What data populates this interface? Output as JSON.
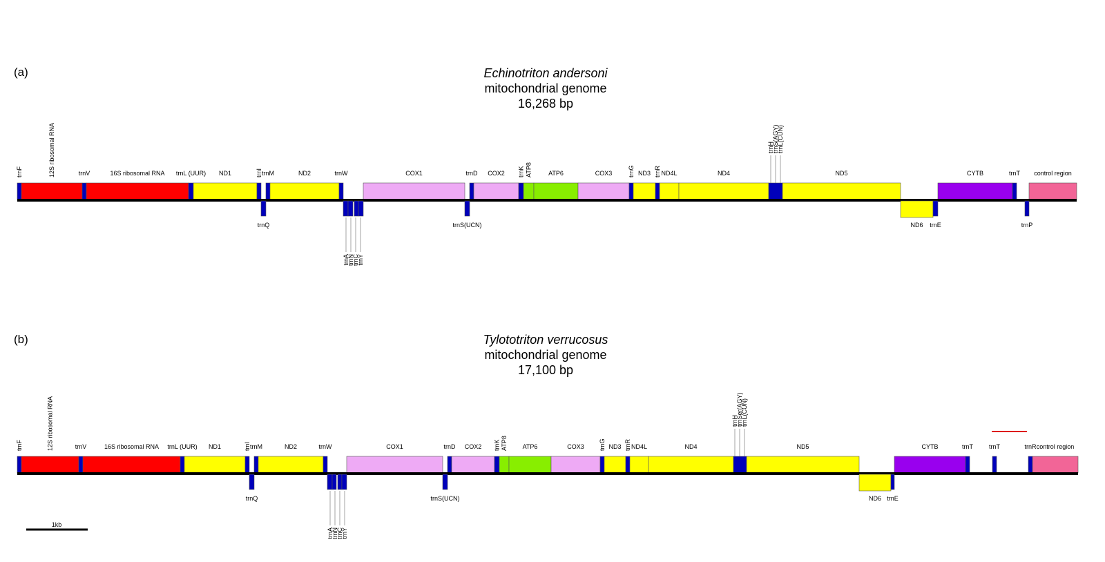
{
  "colors": {
    "rRNA": "#ff0000",
    "gene": "#ffff00",
    "tRNA": "#0000bb",
    "cox": "#eeaaf5",
    "atp": "#88ee00",
    "cytb": "#9900ee",
    "control": "#f26597",
    "backbone": "#000000",
    "red_mark": "#dd0000"
  },
  "panels": [
    {
      "label": "(a)",
      "species": "Echinotriton andersoni",
      "subtitle": "mitochondrial genome",
      "size": "16,268 bp",
      "upper": [
        {
          "name": "trnF",
          "type": "tRNA",
          "start": 0,
          "end": 6,
          "label": "trnF",
          "vertical": true
        },
        {
          "name": "12S",
          "type": "rRNA",
          "start": 6,
          "end": 94,
          "label": "12S ribosomal RNA",
          "vertical": true
        },
        {
          "name": "trnV",
          "type": "tRNA",
          "start": 94,
          "end": 100,
          "label": "trnV",
          "vertical": false
        },
        {
          "name": "16S",
          "type": "rRNA",
          "start": 100,
          "end": 248,
          "label": "16S ribosomal RNA",
          "vertical": false
        },
        {
          "name": "trnL",
          "type": "tRNA",
          "start": 248,
          "end": 255,
          "label": "trnL (UUR)",
          "vertical": false
        },
        {
          "name": "ND1",
          "type": "gene",
          "start": 255,
          "end": 347,
          "label": "ND1",
          "vertical": false
        },
        {
          "name": "trnI",
          "type": "tRNA",
          "start": 347,
          "end": 353,
          "label": "trnI",
          "vertical": true
        },
        {
          "name": "trnM",
          "type": "tRNA",
          "start": 360,
          "end": 366,
          "label": "trnM",
          "vertical": false
        },
        {
          "name": "ND2",
          "type": "gene",
          "start": 366,
          "end": 466,
          "label": "ND2",
          "vertical": false
        },
        {
          "name": "trnW",
          "type": "tRNA",
          "start": 466,
          "end": 472,
          "label": "trnW",
          "vertical": false
        },
        {
          "name": "COX1",
          "type": "cox",
          "start": 501,
          "end": 648,
          "label": "COX1",
          "vertical": false
        },
        {
          "name": "trnD",
          "type": "tRNA",
          "start": 655,
          "end": 661,
          "label": "trnD",
          "vertical": false
        },
        {
          "name": "COX2",
          "type": "cox",
          "start": 661,
          "end": 726,
          "label": "COX2",
          "vertical": false
        },
        {
          "name": "trnK",
          "type": "tRNA",
          "start": 726,
          "end": 733,
          "label": "trnK",
          "vertical": true
        },
        {
          "name": "ATP8",
          "type": "atp",
          "start": 733,
          "end": 748,
          "label": "ATP8",
          "vertical": true
        },
        {
          "name": "ATP6",
          "type": "atp",
          "start": 748,
          "end": 812,
          "label": "ATP6",
          "vertical": false
        },
        {
          "name": "COX3",
          "type": "cox",
          "start": 812,
          "end": 886,
          "label": "COX3",
          "vertical": false
        },
        {
          "name": "trnG",
          "type": "tRNA",
          "start": 886,
          "end": 892,
          "label": "trnG",
          "vertical": true
        },
        {
          "name": "ND3",
          "type": "gene",
          "start": 892,
          "end": 924,
          "label": "ND3",
          "vertical": false
        },
        {
          "name": "trnR",
          "type": "tRNA",
          "start": 924,
          "end": 930,
          "label": "trnR",
          "vertical": true
        },
        {
          "name": "ND4L",
          "type": "gene",
          "start": 930,
          "end": 958,
          "label": "ND4L",
          "vertical": false
        },
        {
          "name": "ND4",
          "type": "gene",
          "start": 958,
          "end": 1088,
          "label": "ND4",
          "vertical": false
        },
        {
          "name": "trnHSL",
          "type": "tRNA",
          "start": 1088,
          "end": 1108,
          "label": "",
          "vertical": false
        },
        {
          "name": "ND5",
          "type": "gene",
          "start": 1108,
          "end": 1279,
          "label": "ND5",
          "vertical": false
        },
        {
          "name": "CYTB",
          "type": "cytb",
          "start": 1333,
          "end": 1441,
          "label": "CYTB",
          "vertical": false
        },
        {
          "name": "trnT",
          "type": "tRNA",
          "start": 1441,
          "end": 1447,
          "label": "trnT",
          "vertical": false
        },
        {
          "name": "control",
          "type": "control",
          "start": 1465,
          "end": 1534,
          "label": "control region",
          "vertical": false
        }
      ],
      "top_cluster": {
        "labels": [
          "trnH",
          "trnS(AGY)",
          "trnL(CUN)"
        ],
        "at": 1098
      },
      "lower": [
        {
          "name": "trnQ",
          "type": "tRNA",
          "start": 353,
          "end": 360,
          "label": "trnQ"
        },
        {
          "name": "trnA",
          "type": "tRNA",
          "start": 472,
          "end": 479,
          "label": ""
        },
        {
          "name": "trnN",
          "type": "tRNA",
          "start": 479,
          "end": 486,
          "label": ""
        },
        {
          "name": "trnC",
          "type": "tRNA",
          "start": 488,
          "end": 494,
          "label": ""
        },
        {
          "name": "trnY",
          "type": "tRNA",
          "start": 494,
          "end": 501,
          "label": ""
        },
        {
          "name": "trnS",
          "type": "tRNA",
          "start": 648,
          "end": 655,
          "label": "trnS(UCN)"
        },
        {
          "name": "ND6",
          "type": "gene",
          "start": 1279,
          "end": 1326,
          "label": "ND6"
        },
        {
          "name": "trnE",
          "type": "tRNA",
          "start": 1326,
          "end": 1333,
          "label": "trnE"
        },
        {
          "name": "trnP",
          "type": "tRNA",
          "start": 1459,
          "end": 1465,
          "label": "trnP"
        }
      ],
      "bottom_cluster": {
        "labels": [
          "trnA",
          "trnN",
          "trnC",
          "trnY"
        ],
        "at": 486
      },
      "length": 1534
    },
    {
      "label": "(b)",
      "species": "Tylototriton verrucosus",
      "subtitle": "mitochondrial genome",
      "size": "17,100 bp",
      "upper": [
        {
          "name": "trnF",
          "type": "tRNA",
          "start": 0,
          "end": 6,
          "label": "trnF",
          "vertical": true
        },
        {
          "name": "12S",
          "type": "rRNA",
          "start": 6,
          "end": 89,
          "label": "12S ribosomal RNA",
          "vertical": true
        },
        {
          "name": "trnV",
          "type": "tRNA",
          "start": 89,
          "end": 95,
          "label": "trnV",
          "vertical": false
        },
        {
          "name": "16S",
          "type": "rRNA",
          "start": 95,
          "end": 236,
          "label": "16S ribosomal RNA",
          "vertical": false
        },
        {
          "name": "trnL",
          "type": "tRNA",
          "start": 236,
          "end": 242,
          "label": "trnL (UUR)",
          "vertical": false
        },
        {
          "name": "ND1",
          "type": "gene",
          "start": 242,
          "end": 330,
          "label": "ND1",
          "vertical": false
        },
        {
          "name": "trnI",
          "type": "tRNA",
          "start": 330,
          "end": 336,
          "label": "trnI",
          "vertical": true
        },
        {
          "name": "trnM",
          "type": "tRNA",
          "start": 343,
          "end": 349,
          "label": "trnM",
          "vertical": false
        },
        {
          "name": "ND2",
          "type": "gene",
          "start": 349,
          "end": 443,
          "label": "ND2",
          "vertical": false
        },
        {
          "name": "trnW",
          "type": "tRNA",
          "start": 443,
          "end": 449,
          "label": "trnW",
          "vertical": false
        },
        {
          "name": "COX1",
          "type": "cox",
          "start": 477,
          "end": 616,
          "label": "COX1",
          "vertical": false
        },
        {
          "name": "trnD",
          "type": "tRNA",
          "start": 623,
          "end": 629,
          "label": "trnD",
          "vertical": false
        },
        {
          "name": "COX2",
          "type": "cox",
          "start": 629,
          "end": 691,
          "label": "COX2",
          "vertical": false
        },
        {
          "name": "trnK",
          "type": "tRNA",
          "start": 691,
          "end": 698,
          "label": "trnK",
          "vertical": true
        },
        {
          "name": "ATP8",
          "type": "atp",
          "start": 698,
          "end": 712,
          "label": "ATP8",
          "vertical": true
        },
        {
          "name": "ATP6",
          "type": "atp",
          "start": 712,
          "end": 773,
          "label": "ATP6",
          "vertical": false
        },
        {
          "name": "COX3",
          "type": "cox",
          "start": 773,
          "end": 844,
          "label": "COX3",
          "vertical": false
        },
        {
          "name": "trnG",
          "type": "tRNA",
          "start": 844,
          "end": 850,
          "label": "trnG",
          "vertical": true
        },
        {
          "name": "ND3",
          "type": "gene",
          "start": 850,
          "end": 881,
          "label": "ND3",
          "vertical": false
        },
        {
          "name": "trnR",
          "type": "tRNA",
          "start": 881,
          "end": 887,
          "label": "trnR",
          "vertical": true
        },
        {
          "name": "ND4L",
          "type": "gene",
          "start": 887,
          "end": 914,
          "label": "ND4L",
          "vertical": false
        },
        {
          "name": "ND4",
          "type": "gene",
          "start": 914,
          "end": 1037,
          "label": "ND4",
          "vertical": false
        },
        {
          "name": "trnHSL",
          "type": "tRNA",
          "start": 1037,
          "end": 1056,
          "label": "",
          "vertical": false
        },
        {
          "name": "ND5",
          "type": "gene",
          "start": 1056,
          "end": 1219,
          "label": "ND5",
          "vertical": false
        },
        {
          "name": "CYTB",
          "type": "cytb",
          "start": 1270,
          "end": 1373,
          "label": "CYTB",
          "vertical": false
        },
        {
          "name": "trnT",
          "type": "tRNA",
          "start": 1373,
          "end": 1379,
          "label": "trnT",
          "vertical": false
        },
        {
          "name": "trnT2",
          "type": "tRNA",
          "start": 1412,
          "end": 1418,
          "label": "trnT",
          "vertical": false
        },
        {
          "name": "trnR2",
          "type": "tRNA",
          "start": 1464,
          "end": 1470,
          "label": "trnR",
          "vertical": false
        },
        {
          "name": "control",
          "type": "control",
          "start": 1470,
          "end": 1536,
          "label": "control region",
          "vertical": false
        }
      ],
      "top_cluster": {
        "labels": [
          "trnH",
          "trnSer(AGY)",
          "trnL(CUN)"
        ],
        "at": 1046
      },
      "lower": [
        {
          "name": "trnQ",
          "type": "tRNA",
          "start": 336,
          "end": 343,
          "label": "trnQ"
        },
        {
          "name": "trnA",
          "type": "tRNA",
          "start": 449,
          "end": 456,
          "label": ""
        },
        {
          "name": "trnN",
          "type": "tRNA",
          "start": 456,
          "end": 462,
          "label": ""
        },
        {
          "name": "trnC",
          "type": "tRNA",
          "start": 464,
          "end": 470,
          "label": ""
        },
        {
          "name": "trnY",
          "type": "tRNA",
          "start": 470,
          "end": 477,
          "label": ""
        },
        {
          "name": "trnS",
          "type": "tRNA",
          "start": 616,
          "end": 623,
          "label": "trnS(UCN)"
        },
        {
          "name": "ND6",
          "type": "gene",
          "start": 1219,
          "end": 1265,
          "label": "ND6"
        },
        {
          "name": "trnE",
          "type": "tRNA",
          "start": 1265,
          "end": 1270,
          "label": "trnE"
        }
      ],
      "bottom_cluster": {
        "labels": [
          "trnA",
          "trnN",
          "trnC",
          "trnY"
        ],
        "at": 463
      },
      "red_mark": {
        "start": 1411,
        "end": 1462
      },
      "length": 1536
    }
  ],
  "scale_bar": {
    "label": "1kb"
  }
}
